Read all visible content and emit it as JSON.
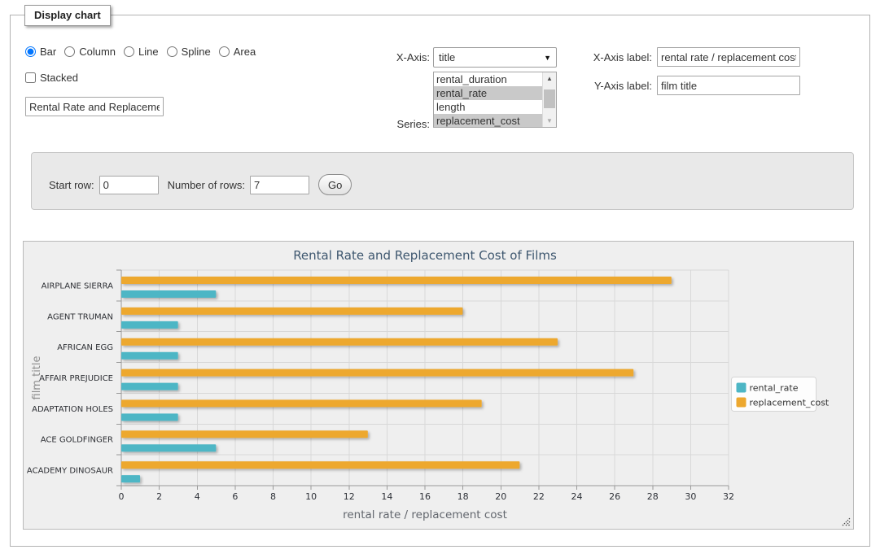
{
  "fieldset": {
    "legend": "Display chart"
  },
  "chart_type": {
    "options": [
      {
        "label": "Bar",
        "checked": true
      },
      {
        "label": "Column",
        "checked": false
      },
      {
        "label": "Line",
        "checked": false
      },
      {
        "label": "Spline",
        "checked": false
      },
      {
        "label": "Area",
        "checked": false
      }
    ],
    "stacked_label": "Stacked",
    "stacked_checked": false
  },
  "title_input": {
    "value": "Rental Rate and Replacement Cost of Films"
  },
  "x_axis_field": {
    "label": "X-Axis:",
    "selected": "title"
  },
  "series_field": {
    "label": "Series:",
    "options": [
      {
        "label": "rental_duration",
        "selected": false
      },
      {
        "label": "rental_rate",
        "selected": true
      },
      {
        "label": "length",
        "selected": false
      },
      {
        "label": "replacement_cost",
        "selected": true
      }
    ]
  },
  "x_axis_label_field": {
    "label": "X-Axis label:",
    "value": "rental rate / replacement cost"
  },
  "y_axis_label_field": {
    "label": "Y-Axis label:",
    "value": "film title"
  },
  "row_controls": {
    "start_row_label": "Start row:",
    "start_row_value": "0",
    "num_rows_label": "Number of rows:",
    "num_rows_value": "7",
    "go_label": "Go"
  },
  "chart_data": {
    "type": "bar",
    "title": "Rental Rate and Replacement Cost of Films",
    "categories": [
      "AIRPLANE SIERRA",
      "AGENT TRUMAN",
      "AFRICAN EGG",
      "AFFAIR PREJUDICE",
      "ADAPTATION HOLES",
      "ACE GOLDFINGER",
      "ACADEMY DINOSAUR"
    ],
    "series": [
      {
        "name": "rental_rate",
        "color": "#4db6c5",
        "values": [
          4.99,
          2.99,
          2.99,
          2.99,
          2.99,
          4.99,
          0.99
        ]
      },
      {
        "name": "replacement_cost",
        "color": "#eda82f",
        "values": [
          28.99,
          17.99,
          22.99,
          26.99,
          18.99,
          12.99,
          20.99
        ]
      }
    ],
    "xlabel": "rental rate / replacement cost",
    "ylabel": "film title",
    "xlim": [
      0,
      32
    ],
    "xticks": [
      0,
      2,
      4,
      6,
      8,
      10,
      12,
      14,
      16,
      18,
      20,
      22,
      24,
      26,
      28,
      30,
      32
    ],
    "grid": true,
    "legend_position": "right",
    "background": "#efefef"
  }
}
